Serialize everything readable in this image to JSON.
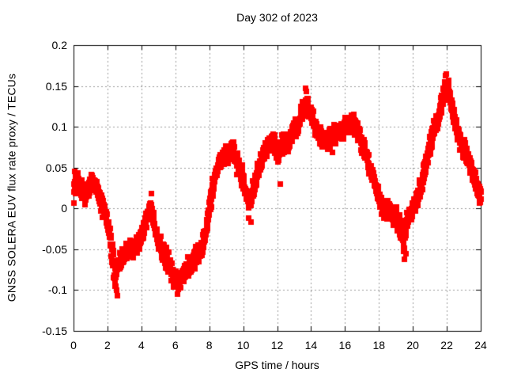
{
  "title": "Day 302 of 2023",
  "xlabel": "GPS time / hours",
  "ylabel": "GNSS SOLERA EUV flux rate proxy / TECUs",
  "colors": {
    "series": "#ff0000",
    "grid": "#9c9c9c",
    "border": "#000000",
    "background": "#ffffff",
    "text": "#000000"
  },
  "ticks": {
    "x_labels": [
      "0",
      "2",
      "4",
      "6",
      "8",
      "10",
      "12",
      "14",
      "16",
      "18",
      "20",
      "22",
      "24"
    ],
    "y_labels": [
      "0.2",
      "0.15",
      "0.1",
      "0.05",
      "0",
      "-0.05",
      "-0.1",
      "-0.15"
    ]
  },
  "chart_data": {
    "type": "scatter",
    "title": "Day 302 of 2023",
    "xlabel": "GPS time / hours",
    "ylabel": "GNSS SOLERA EUV flux rate proxy / TECUs",
    "xlim": [
      0,
      24
    ],
    "ylim": [
      -0.15,
      0.2
    ],
    "x_tick_values": [
      0,
      2,
      4,
      6,
      8,
      10,
      12,
      14,
      16,
      18,
      20,
      22,
      24
    ],
    "y_tick_values": [
      0.2,
      0.15,
      0.1,
      0.05,
      0,
      -0.05,
      -0.1,
      -0.15
    ],
    "grid": true,
    "grid_style": "dotted",
    "legend": "none",
    "marker": "filled-square",
    "marker_size_px": 7,
    "noise_seed": 7,
    "samples_per_day": 2400,
    "series": [
      {
        "name": "GNSS SOLERA EUV flux rate proxy",
        "representation": "dense noisy band of red square markers; keypoints give [hour, center value, band half-width]",
        "keypoints": [
          [
            0.0,
            0.026,
            0.019
          ],
          [
            0.25,
            0.034,
            0.011
          ],
          [
            0.5,
            0.022,
            0.013
          ],
          [
            0.7,
            0.014,
            0.014
          ],
          [
            0.9,
            0.028,
            0.011
          ],
          [
            1.1,
            0.033,
            0.012
          ],
          [
            1.35,
            0.026,
            0.011
          ],
          [
            1.6,
            0.009,
            0.013
          ],
          [
            1.8,
            -0.004,
            0.014
          ],
          [
            2.0,
            -0.018,
            0.014
          ],
          [
            2.2,
            -0.047,
            0.016
          ],
          [
            2.45,
            -0.083,
            0.017
          ],
          [
            2.6,
            -0.067,
            0.013
          ],
          [
            2.8,
            -0.06,
            0.012
          ],
          [
            3.0,
            -0.057,
            0.012
          ],
          [
            3.2,
            -0.052,
            0.012
          ],
          [
            3.5,
            -0.048,
            0.013
          ],
          [
            3.8,
            -0.042,
            0.012
          ],
          [
            4.1,
            -0.027,
            0.012
          ],
          [
            4.35,
            -0.01,
            0.012
          ],
          [
            4.55,
            0.004,
            0.011
          ],
          [
            4.75,
            -0.02,
            0.012
          ],
          [
            4.95,
            -0.04,
            0.013
          ],
          [
            5.2,
            -0.05,
            0.014
          ],
          [
            5.5,
            -0.062,
            0.015
          ],
          [
            5.8,
            -0.078,
            0.015
          ],
          [
            6.05,
            -0.087,
            0.015
          ],
          [
            6.3,
            -0.085,
            0.013
          ],
          [
            6.55,
            -0.08,
            0.012
          ],
          [
            6.8,
            -0.072,
            0.012
          ],
          [
            7.05,
            -0.064,
            0.013
          ],
          [
            7.3,
            -0.054,
            0.013
          ],
          [
            7.6,
            -0.044,
            0.013
          ],
          [
            7.85,
            -0.018,
            0.015
          ],
          [
            8.05,
            0.01,
            0.014
          ],
          [
            8.3,
            0.04,
            0.013
          ],
          [
            8.6,
            0.058,
            0.012
          ],
          [
            8.9,
            0.065,
            0.012
          ],
          [
            9.2,
            0.068,
            0.012
          ],
          [
            9.4,
            0.071,
            0.012
          ],
          [
            9.65,
            0.059,
            0.013
          ],
          [
            9.9,
            0.04,
            0.013
          ],
          [
            10.15,
            0.018,
            0.012
          ],
          [
            10.35,
            0.007,
            0.012
          ],
          [
            10.6,
            0.026,
            0.012
          ],
          [
            10.9,
            0.051,
            0.012
          ],
          [
            11.2,
            0.068,
            0.012
          ],
          [
            11.5,
            0.08,
            0.013
          ],
          [
            11.8,
            0.083,
            0.012
          ],
          [
            12.05,
            0.067,
            0.013
          ],
          [
            12.3,
            0.08,
            0.014
          ],
          [
            12.6,
            0.081,
            0.013
          ],
          [
            12.9,
            0.094,
            0.013
          ],
          [
            13.2,
            0.104,
            0.013
          ],
          [
            13.5,
            0.12,
            0.013
          ],
          [
            13.75,
            0.129,
            0.014
          ],
          [
            14.0,
            0.114,
            0.013
          ],
          [
            14.3,
            0.098,
            0.013
          ],
          [
            14.6,
            0.086,
            0.013
          ],
          [
            14.9,
            0.084,
            0.013
          ],
          [
            15.2,
            0.088,
            0.013
          ],
          [
            15.5,
            0.092,
            0.013
          ],
          [
            15.8,
            0.097,
            0.012
          ],
          [
            16.1,
            0.103,
            0.012
          ],
          [
            16.45,
            0.107,
            0.013
          ],
          [
            16.7,
            0.097,
            0.013
          ],
          [
            17.0,
            0.079,
            0.013
          ],
          [
            17.3,
            0.06,
            0.013
          ],
          [
            17.6,
            0.04,
            0.012
          ],
          [
            17.9,
            0.02,
            0.013
          ],
          [
            18.2,
            0.0,
            0.013
          ],
          [
            18.45,
            0.0,
            0.013
          ],
          [
            18.7,
            -0.003,
            0.013
          ],
          [
            19.0,
            -0.01,
            0.015
          ],
          [
            19.25,
            -0.021,
            0.014
          ],
          [
            19.45,
            -0.038,
            0.017
          ],
          [
            19.65,
            -0.013,
            0.013
          ],
          [
            19.9,
            -0.002,
            0.011
          ],
          [
            20.1,
            0.006,
            0.011
          ],
          [
            20.4,
            0.022,
            0.012
          ],
          [
            20.65,
            0.045,
            0.013
          ],
          [
            20.9,
            0.07,
            0.013
          ],
          [
            21.2,
            0.096,
            0.013
          ],
          [
            21.5,
            0.112,
            0.013
          ],
          [
            21.7,
            0.131,
            0.013
          ],
          [
            21.95,
            0.153,
            0.013
          ],
          [
            22.15,
            0.139,
            0.013
          ],
          [
            22.4,
            0.112,
            0.013
          ],
          [
            22.65,
            0.089,
            0.012
          ],
          [
            22.9,
            0.077,
            0.012
          ],
          [
            23.1,
            0.069,
            0.012
          ],
          [
            23.35,
            0.052,
            0.012
          ],
          [
            23.6,
            0.038,
            0.012
          ],
          [
            23.8,
            0.026,
            0.012
          ],
          [
            24.0,
            0.014,
            0.012
          ]
        ],
        "outliers": [
          [
            0.05,
            0.046
          ],
          [
            2.5,
            -0.1
          ],
          [
            2.57,
            -0.106
          ],
          [
            4.56,
            0.019
          ],
          [
            6.1,
            -0.104
          ],
          [
            9.35,
            0.082
          ],
          [
            10.3,
            -0.011
          ],
          [
            10.42,
            -0.016
          ],
          [
            12.18,
            0.03
          ],
          [
            13.65,
            0.148
          ],
          [
            13.72,
            0.144
          ],
          [
            19.42,
            -0.052
          ],
          [
            19.5,
            -0.062
          ],
          [
            19.56,
            -0.055
          ],
          [
            21.97,
            0.165
          ]
        ]
      }
    ]
  }
}
